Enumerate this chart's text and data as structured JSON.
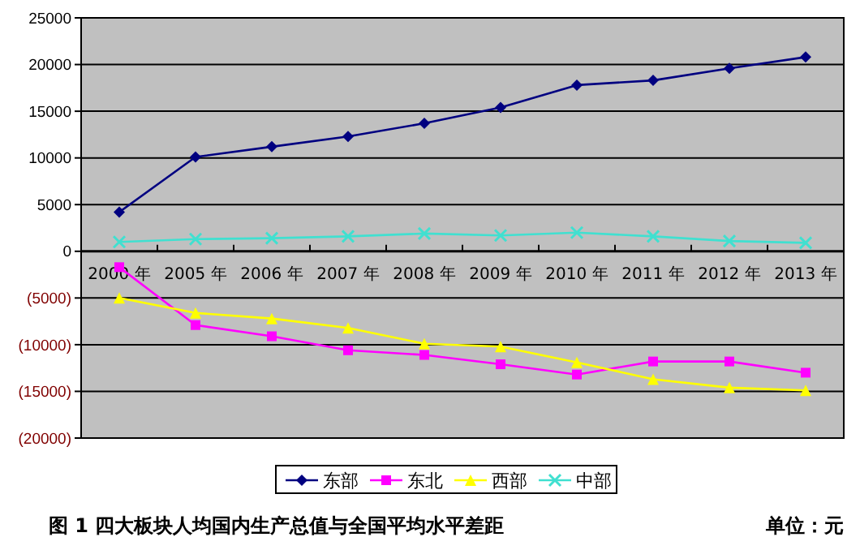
{
  "chart_data": {
    "type": "line",
    "title": "图 1 四大板块人均国内生产总值与全国平均水平差距",
    "annotations": [
      "单位：元"
    ],
    "categories": [
      "2000 年",
      "2005 年",
      "2006 年",
      "2007 年",
      "2008 年",
      "2009 年",
      "2010 年",
      "2011 年",
      "2012 年",
      "2013 年"
    ],
    "series": [
      {
        "name": "东部",
        "color": "#000080",
        "marker": "diamond",
        "values": [
          4200,
          10100,
          11200,
          12300,
          13700,
          15400,
          17800,
          18300,
          19600,
          20800
        ]
      },
      {
        "name": "东北",
        "color": "#ff00ff",
        "marker": "square",
        "values": [
          -1700,
          -7900,
          -9100,
          -10600,
          -11100,
          -12100,
          -13200,
          -11800,
          -11800,
          -13000
        ]
      },
      {
        "name": "西部",
        "color": "#ffff00",
        "marker": "triangle",
        "values": [
          -5000,
          -6600,
          -7200,
          -8200,
          -9900,
          -10200,
          -11900,
          -13700,
          -14600,
          -14900
        ]
      },
      {
        "name": "中部",
        "color": "#40e0d0",
        "marker": "cross",
        "values": [
          1000,
          1300,
          1400,
          1600,
          1900,
          1700,
          2000,
          1600,
          1100,
          900
        ]
      }
    ],
    "ylim": [
      -20000,
      25000
    ],
    "yticks": [
      {
        "value": -20000,
        "label": "(20000)"
      },
      {
        "value": -15000,
        "label": "(15000)"
      },
      {
        "value": -10000,
        "label": "(10000)"
      },
      {
        "value": -5000,
        "label": "(5000)"
      },
      0,
      5000,
      10000,
      15000,
      20000,
      25000
    ],
    "grid": "y",
    "legend": "bottom",
    "line_style": "solid"
  }
}
